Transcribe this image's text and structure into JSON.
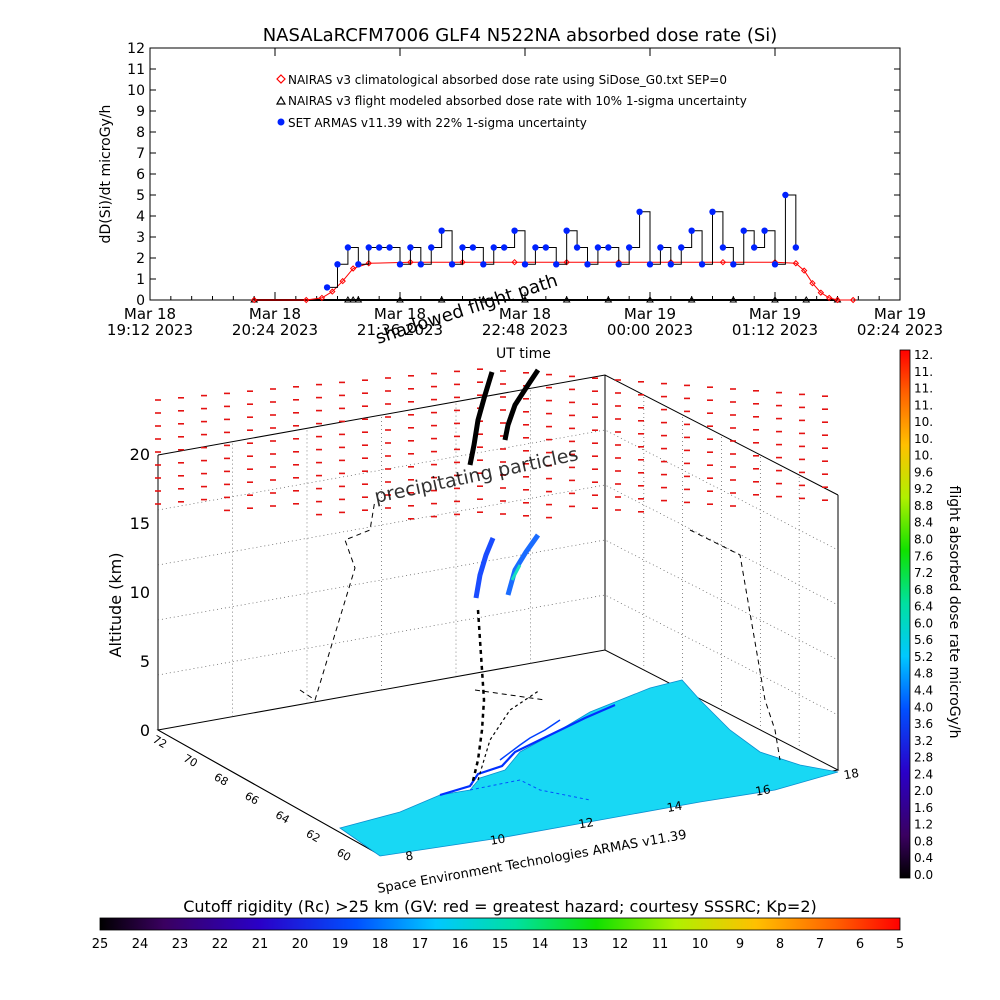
{
  "title": "NASALaRCFM7006   GLF4  N522NA  absorbed dose rate (Si)",
  "colors": {
    "nairas_clim": "#ff0000",
    "nairas_flight": "#000000",
    "armas": "#0022ff",
    "armas_line": "#000000"
  },
  "top_plot": {
    "ylabel": "dD(Si)/dt microGy/h",
    "legend": [
      "NAIRAS v3 climatological absorbed dose rate using SiDose_G0.txt SEP=0",
      "NAIRAS v3 flight modeled absorbed dose rate with 10% 1-sigma uncertainty",
      "SET ARMAS v11.39 with 22% 1-sigma uncertainty"
    ],
    "ytick_labels": [
      "0",
      "1",
      "2",
      "3",
      "4",
      "5",
      "6",
      "7",
      "8",
      "9",
      "10",
      "11",
      "12"
    ],
    "xtick_labels_top": [
      "Mar 18",
      "Mar 18",
      "Mar 18",
      "Mar 18",
      "Mar 19",
      "Mar 19",
      "Mar 19"
    ],
    "xtick_labels_bottom": [
      "19:12 2023",
      "20:24 2023",
      "21:36 2023",
      "22:48 2023",
      "00:00 2023",
      "01:12 2023",
      "02:24 2023"
    ]
  },
  "scene_labels": {
    "shadowed_flight_path": "shadowed flight path",
    "ut_time": "UT time",
    "precipitating_particles": "precipitating particles",
    "altitude_axis": "Altitude (km)",
    "altitude_ticks": [
      "0",
      "5",
      "10",
      "15",
      "20"
    ],
    "lat_ticks": [
      "72",
      "70",
      "68",
      "66",
      "64",
      "62",
      "60"
    ],
    "lon_ticks": [
      "8",
      "10",
      "12",
      "14",
      "16",
      "18"
    ],
    "credit": "Space Environment Technologies ARMAS v11.39"
  },
  "right_colorbar": {
    "label": "flight absorbed dose rate microGy/h",
    "tick_labels": [
      "12.",
      "11.",
      "11.",
      "11.",
      "10.",
      "10.",
      "10.",
      "9.6",
      "9.2",
      "8.8",
      "8.4",
      "8.0",
      "7.6",
      "7.2",
      "6.8",
      "6.4",
      "6.0",
      "5.6",
      "5.2",
      "4.8",
      "4.4",
      "4.0",
      "3.6",
      "3.2",
      "2.8",
      "2.4",
      "2.0",
      "1.6",
      "1.2",
      "0.8",
      "0.4",
      "0.0"
    ]
  },
  "bottom_colorbar": {
    "label": "Cutoff rigidity (Rc) >25 km (GV: red = greatest hazard; courtesy SSSRC; Kp=2)",
    "tick_labels": [
      "25",
      "24",
      "23",
      "22",
      "21",
      "20",
      "19",
      "18",
      "17",
      "16",
      "15",
      "14",
      "13",
      "12",
      "11",
      "10",
      "9",
      "8",
      "7",
      "6",
      "5"
    ]
  },
  "chart_data": [
    {
      "type": "line",
      "title": "NASALaRCFM7006   GLF4  N522NA  absorbed dose rate (Si)",
      "xlabel": "",
      "ylabel": "dD(Si)/dt microGy/h",
      "x_unit": "hours since Mar 18 19:12 UT",
      "xlim": [
        0,
        7.2
      ],
      "ylim": [
        0,
        12
      ],
      "x_tick_values": [
        0,
        1.2,
        2.4,
        3.6,
        4.8,
        6.0,
        7.2
      ],
      "series": [
        {
          "name": "NAIRAS v3 climatological absorbed dose rate using SiDose_G0.txt SEP=0",
          "x": [
            1.0,
            1.5,
            1.65,
            1.75,
            1.85,
            1.95,
            2.1,
            2.5,
            3.0,
            3.5,
            4.0,
            4.5,
            5.0,
            5.5,
            6.0,
            6.2,
            6.28,
            6.36,
            6.44,
            6.52,
            6.6,
            6.75
          ],
          "values": [
            0,
            0,
            0.1,
            0.4,
            0.9,
            1.5,
            1.75,
            1.8,
            1.8,
            1.8,
            1.8,
            1.8,
            1.8,
            1.8,
            1.8,
            1.75,
            1.4,
            0.8,
            0.35,
            0.1,
            0,
            0
          ]
        },
        {
          "name": "NAIRAS v3 flight modeled absorbed dose rate with 10% 1-sigma uncertainty",
          "x": [
            1.0,
            1.9,
            1.95,
            2.0,
            2.4,
            2.8,
            3.2,
            3.6,
            4.0,
            4.4,
            4.8,
            5.2,
            5.6,
            6.0,
            6.3,
            6.6
          ],
          "values": [
            0,
            0,
            0,
            0,
            0,
            0,
            0,
            0,
            0,
            0,
            0,
            0,
            0,
            0,
            0,
            0
          ]
        },
        {
          "name": "SET ARMAS v11.39 with 22% 1-sigma uncertainty",
          "x": [
            1.7,
            1.8,
            1.9,
            2.0,
            2.1,
            2.2,
            2.3,
            2.4,
            2.5,
            2.6,
            2.7,
            2.8,
            2.9,
            3.0,
            3.1,
            3.2,
            3.3,
            3.4,
            3.5,
            3.6,
            3.7,
            3.8,
            3.9,
            4.0,
            4.1,
            4.2,
            4.3,
            4.4,
            4.5,
            4.6,
            4.7,
            4.8,
            4.9,
            5.0,
            5.1,
            5.2,
            5.3,
            5.4,
            5.5,
            5.6,
            5.7,
            5.8,
            5.9,
            6.0,
            6.1,
            6.2
          ],
          "values": [
            0.6,
            1.7,
            2.5,
            1.7,
            2.5,
            2.5,
            2.5,
            1.7,
            2.5,
            1.7,
            2.5,
            3.3,
            1.7,
            2.5,
            2.5,
            1.7,
            2.5,
            2.5,
            3.3,
            1.7,
            2.5,
            2.5,
            1.7,
            3.3,
            2.5,
            1.7,
            2.5,
            2.5,
            1.7,
            2.5,
            4.2,
            1.7,
            2.5,
            1.7,
            2.5,
            3.3,
            1.7,
            4.2,
            2.5,
            1.7,
            3.3,
            2.5,
            3.3,
            1.7,
            5.0,
            2.5
          ]
        }
      ]
    },
    {
      "type": "scatter",
      "subtype": "3d flight track",
      "zlabel": "Altitude (km)",
      "zlim": [
        0,
        20
      ],
      "latitude_ticks": [
        72,
        70,
        68,
        66,
        64,
        62,
        60
      ],
      "longitude_ticks": [
        8,
        10,
        12,
        14,
        16,
        18
      ],
      "colorbar": {
        "label": "flight absorbed dose rate microGy/h",
        "range": [
          0,
          12
        ]
      },
      "basemap_colorbar": {
        "label": "Cutoff rigidity (Rc) >25 km",
        "range": [
          25,
          5
        ]
      }
    }
  ]
}
